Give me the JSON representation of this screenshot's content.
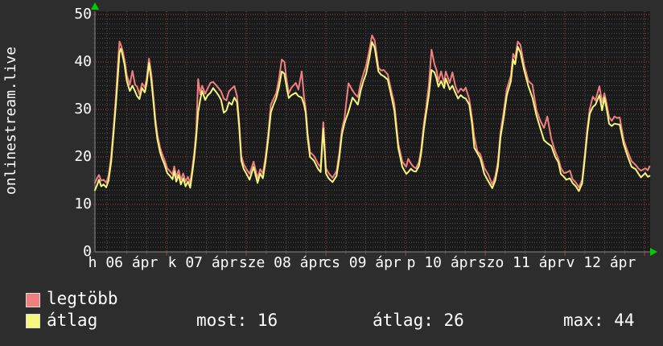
{
  "left_label": "onlinestream.live",
  "colors": {
    "background": "#2d2d2d",
    "plot_background": "#1a1a1a",
    "grid_minor": "#4f4f4f",
    "grid_major": "#9e4343",
    "axis": "#8a8a8a",
    "arrow": "#00cc00",
    "text": "#ffffff"
  },
  "legend": [
    {
      "label": "legtöbb",
      "color": "#f08080"
    },
    {
      "label": "átlag",
      "color": "#f6f67c"
    }
  ],
  "stats": [
    "most: 16",
    "átlag: 26",
    "max: 44"
  ],
  "chart_data": {
    "type": "line",
    "title": "",
    "ylabel": "onlinestream.live",
    "ylim": [
      0,
      50
    ],
    "y_tick_labels": [
      50,
      40,
      30,
      20,
      10,
      0
    ],
    "y_major_grid": 10,
    "y_minor_grid": 1,
    "x_unit": "hours since 06 ápr 00:00",
    "x_range_hours": [
      2.4,
      169.5
    ],
    "x_major_grid_hours": 24,
    "x_minor_grid_hours": 6,
    "x_tick_labels": [
      "h 06 ápr",
      "k 07 ápr",
      "sze 08 ápr",
      "cs 09 ápr",
      "p 10 ápr",
      "szo 11 ápr",
      "v 12 ápr"
    ],
    "grid": true,
    "legend_position": "bottom-left",
    "series": [
      {
        "name": "legtöbb",
        "color": "#f08080"
      },
      {
        "name": "átlag",
        "color": "#f6f67c"
      }
    ],
    "points_format": [
      "hour",
      "legtöbb",
      "átlag"
    ],
    "points": [
      [
        2.4,
        14.5,
        13
      ],
      [
        3.0,
        15.5,
        14
      ],
      [
        3.6,
        16.2,
        15.2
      ],
      [
        4.3,
        15,
        13.8
      ],
      [
        5.0,
        15.2,
        14.2
      ],
      [
        5.8,
        14.6,
        13.6
      ],
      [
        6.5,
        16,
        15
      ],
      [
        7.3,
        20.2,
        19
      ],
      [
        8.0,
        26,
        25
      ],
      [
        8.7,
        32.5,
        31
      ],
      [
        9.3,
        39.5,
        37
      ],
      [
        9.8,
        44.3,
        42
      ],
      [
        10.2,
        43.6,
        42.8
      ],
      [
        10.7,
        42.5,
        41.5
      ],
      [
        11.3,
        40.5,
        39.5
      ],
      [
        12.0,
        37.2,
        36
      ],
      [
        12.9,
        35.2,
        33.9
      ],
      [
        13.7,
        38.1,
        35
      ],
      [
        14.5,
        35.2,
        33.8
      ],
      [
        15.1,
        34.8,
        32.8
      ],
      [
        15.8,
        33.2,
        32.2
      ],
      [
        16.6,
        35.5,
        34.5
      ],
      [
        17.4,
        34.6,
        33.6
      ],
      [
        18.0,
        36.5,
        35.5
      ],
      [
        18.7,
        40.7,
        39.8
      ],
      [
        19.4,
        37.5,
        36
      ],
      [
        19.9,
        33.5,
        32.5
      ],
      [
        20.6,
        28,
        27
      ],
      [
        21.2,
        24.7,
        23.7
      ],
      [
        22.0,
        22,
        21
      ],
      [
        22.6,
        20.7,
        19.7
      ],
      [
        23.3,
        19.5,
        18.5
      ],
      [
        24.2,
        17.6,
        16.6
      ],
      [
        25.0,
        17,
        16
      ],
      [
        25.8,
        16.3,
        15.3
      ],
      [
        26.3,
        18,
        17
      ],
      [
        26.9,
        15.8,
        14.8
      ],
      [
        27.6,
        17.2,
        16.2
      ],
      [
        28.3,
        15.2,
        14.2
      ],
      [
        29.0,
        16.5,
        15.5
      ],
      [
        29.7,
        14.8,
        13.8
      ],
      [
        30.4,
        15.8,
        14.8
      ],
      [
        31.1,
        14.5,
        13.5
      ],
      [
        31.7,
        17.5,
        16.5
      ],
      [
        32.3,
        20.7,
        19.7
      ],
      [
        32.9,
        25.2,
        24
      ],
      [
        33.5,
        36.4,
        29.5
      ],
      [
        34.1,
        33.2,
        32
      ],
      [
        34.7,
        35,
        33.9
      ],
      [
        35.6,
        33.3,
        32
      ],
      [
        36.4,
        34.5,
        33
      ],
      [
        37.2,
        35.6,
        33.5
      ],
      [
        38.0,
        35.8,
        34.5
      ],
      [
        38.8,
        35.2,
        33.8
      ],
      [
        39.6,
        34.5,
        33
      ],
      [
        40.4,
        33.8,
        32
      ],
      [
        41.2,
        32.3,
        29.3
      ],
      [
        42.0,
        31.9,
        29.8
      ],
      [
        42.8,
        33.8,
        31.5
      ],
      [
        43.6,
        34.4,
        31
      ],
      [
        44.4,
        34.9,
        32.5
      ],
      [
        45.2,
        32.8,
        31.5
      ],
      [
        45.9,
        27,
        26
      ],
      [
        46.5,
        20.2,
        19.2
      ],
      [
        47.2,
        18.5,
        17.5
      ],
      [
        48.0,
        17.5,
        16.5
      ],
      [
        49.0,
        16.4,
        15.2
      ],
      [
        50.2,
        19,
        17.9
      ],
      [
        51.4,
        15.5,
        14.5
      ],
      [
        52.2,
        17.4,
        16.5
      ],
      [
        53.0,
        16.5,
        15.5
      ],
      [
        53.8,
        20,
        19
      ],
      [
        54.6,
        24.7,
        23.7
      ],
      [
        55.4,
        31,
        29.3
      ],
      [
        56.2,
        32.2,
        31
      ],
      [
        57.0,
        33.4,
        32.3
      ],
      [
        57.8,
        36.2,
        34.5
      ],
      [
        58.7,
        40.5,
        38
      ],
      [
        59.5,
        40,
        37.5
      ],
      [
        60.2,
        36,
        34.5
      ],
      [
        60.8,
        33.4,
        32.4
      ],
      [
        61.6,
        34.6,
        33
      ],
      [
        62.9,
        35.6,
        33.5
      ],
      [
        63.7,
        34.2,
        32.8
      ],
      [
        64.7,
        38,
        32.5
      ],
      [
        65.4,
        32.5,
        31
      ],
      [
        65.9,
        30.2,
        29.3
      ],
      [
        66.5,
        25,
        24
      ],
      [
        67.2,
        21,
        20
      ],
      [
        68.4,
        20.2,
        19.2
      ],
      [
        69.6,
        18.6,
        17.5
      ],
      [
        70.4,
        17.8,
        16.8
      ],
      [
        71.2,
        27.3,
        26
      ],
      [
        72.0,
        17.6,
        16.5
      ],
      [
        72.8,
        16.6,
        15.5
      ],
      [
        74.0,
        15.6,
        14.7
      ],
      [
        75.2,
        17,
        16
      ],
      [
        76.0,
        20.7,
        19.7
      ],
      [
        76.8,
        25.7,
        24.7
      ],
      [
        77.6,
        28.2,
        27.1
      ],
      [
        78.8,
        35.5,
        29.5
      ],
      [
        80.0,
        34,
        32.5
      ],
      [
        80.8,
        33.2,
        31.8
      ],
      [
        81.6,
        32.6,
        31
      ],
      [
        82.5,
        35.6,
        34
      ],
      [
        83.3,
        37.5,
        36
      ],
      [
        84.1,
        39.2,
        37.5
      ],
      [
        85.0,
        42.2,
        40.5
      ],
      [
        85.9,
        45.6,
        44.2
      ],
      [
        86.7,
        44.5,
        43
      ],
      [
        87.8,
        38.8,
        38
      ],
      [
        88.6,
        38.2,
        37.3
      ],
      [
        89.4,
        38.3,
        37
      ],
      [
        90.6,
        37.4,
        36.3
      ],
      [
        91.8,
        33.6,
        32.5
      ],
      [
        92.6,
        31.2,
        29.8
      ],
      [
        93.8,
        22.8,
        21.9
      ],
      [
        95.0,
        19,
        17.9
      ],
      [
        96.2,
        17.9,
        16.4
      ],
      [
        96.8,
        19.6,
        16.8
      ],
      [
        97.6,
        18.6,
        17.5
      ],
      [
        98.4,
        17.9,
        17
      ],
      [
        99.1,
        17.6,
        16.9
      ],
      [
        100.0,
        18.9,
        18
      ],
      [
        100.7,
        21.7,
        20.8
      ],
      [
        101.5,
        27,
        25.9
      ],
      [
        102.2,
        30.4,
        29.3
      ],
      [
        103.0,
        35.2,
        33
      ],
      [
        103.8,
        42.6,
        38.3
      ],
      [
        104.7,
        39.5,
        37.8
      ],
      [
        105.3,
        38.3,
        36.5
      ],
      [
        105.9,
        35.9,
        34.8
      ],
      [
        106.7,
        38,
        36
      ],
      [
        107.6,
        35.6,
        34.5
      ],
      [
        108.1,
        38,
        36.5
      ],
      [
        109.3,
        35.6,
        34.2
      ],
      [
        110.1,
        37.8,
        35
      ],
      [
        111.0,
        34.9,
        33.5
      ],
      [
        111.8,
        33.5,
        32.3
      ],
      [
        112.6,
        34.4,
        33
      ],
      [
        113.4,
        33.9,
        32.5
      ],
      [
        114.1,
        34.6,
        32.3
      ],
      [
        115.2,
        32.1,
        31
      ],
      [
        116.0,
        28.2,
        27
      ],
      [
        116.7,
        24.2,
        21.9
      ],
      [
        117.6,
        21.2,
        20.8
      ],
      [
        118.5,
        20.6,
        19.7
      ],
      [
        119.7,
        17.7,
        16.4
      ],
      [
        120.9,
        16.3,
        14.9
      ],
      [
        122.1,
        14.2,
        13.4
      ],
      [
        123.0,
        15.9,
        15
      ],
      [
        123.8,
        18.9,
        17.9
      ],
      [
        124.6,
        25.3,
        24.2
      ],
      [
        125.4,
        28.8,
        27.6
      ],
      [
        126.5,
        34.3,
        33
      ],
      [
        127.7,
        37.1,
        35.9
      ],
      [
        128.4,
        41.7,
        40.5
      ],
      [
        129.0,
        40.8,
        39.5
      ],
      [
        129.8,
        44.3,
        43.2
      ],
      [
        130.6,
        43.6,
        42
      ],
      [
        131.7,
        39.3,
        38.3
      ],
      [
        133.0,
        36,
        34.9
      ],
      [
        134.2,
        35.2,
        32.5
      ],
      [
        135.4,
        29.9,
        28.8
      ],
      [
        136.6,
        27.6,
        26
      ],
      [
        137.7,
        26.1,
        23.5
      ],
      [
        138.7,
        28.5,
        22.9
      ],
      [
        139.9,
        23.8,
        22.3
      ],
      [
        141.1,
        21.1,
        20
      ],
      [
        142.0,
        19.6,
        18.9
      ],
      [
        142.8,
        17.7,
        16.4
      ],
      [
        143.7,
        16.6,
        15.8
      ],
      [
        144.4,
        16.7,
        15.2
      ],
      [
        145.5,
        17.1,
        15.5
      ],
      [
        146.3,
        15.3,
        14.5
      ],
      [
        147.3,
        14.6,
        13.8
      ],
      [
        148.2,
        13.6,
        12.8
      ],
      [
        149.2,
        15.1,
        14.4
      ],
      [
        150.0,
        20.6,
        19.8
      ],
      [
        150.8,
        26.2,
        25.3
      ],
      [
        151.5,
        30.1,
        29.1
      ],
      [
        152.4,
        32.7,
        30.5
      ],
      [
        153.2,
        31.9,
        31
      ],
      [
        154.4,
        34.9,
        33
      ],
      [
        155.2,
        31.4,
        29.8
      ],
      [
        155.9,
        33.4,
        32.5
      ],
      [
        156.6,
        31.1,
        30
      ],
      [
        157.3,
        28.4,
        27
      ],
      [
        158.1,
        27.6,
        26.5
      ],
      [
        158.9,
        28.5,
        27
      ],
      [
        159.7,
        28.2,
        26.9
      ],
      [
        160.5,
        28.3,
        26.8
      ],
      [
        161.7,
        23.6,
        22.7
      ],
      [
        162.9,
        21.1,
        20.1
      ],
      [
        164.1,
        19.1,
        17.9
      ],
      [
        165.3,
        18.3,
        17.4
      ],
      [
        166.1,
        17.6,
        16.5
      ],
      [
        166.9,
        17.1,
        15.7
      ],
      [
        168.2,
        17.6,
        16.6
      ],
      [
        169.0,
        17.2,
        15.8
      ],
      [
        169.5,
        18,
        16
      ]
    ]
  }
}
